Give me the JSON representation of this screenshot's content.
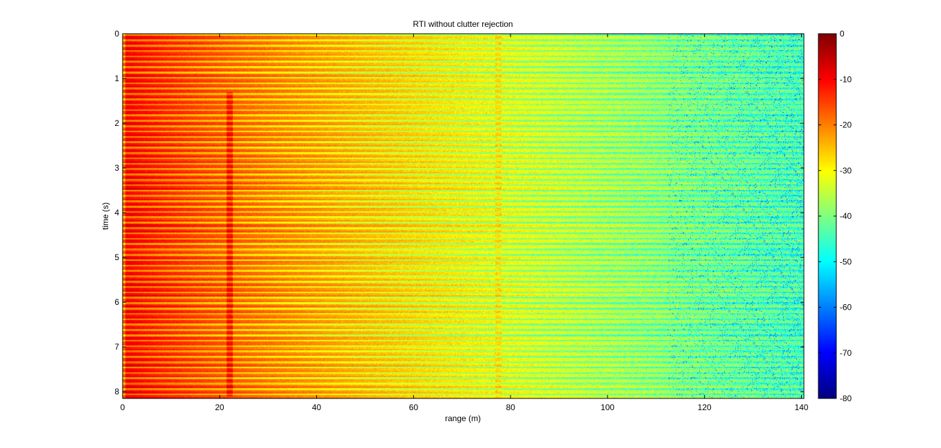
{
  "chart_data": {
    "type": "heatmap",
    "title": "RTI without clutter rejection",
    "xlabel": "range (m)",
    "ylabel": "time (s)",
    "xlim": [
      0,
      140.5
    ],
    "ylim": [
      0,
      8.15
    ],
    "y_reversed": true,
    "x_ticks": [
      0,
      20,
      40,
      60,
      80,
      100,
      120,
      140
    ],
    "x_tick_labels": [
      "0",
      "20",
      "40",
      "60",
      "80",
      "100",
      "120",
      "140"
    ],
    "y_ticks": [
      0,
      1,
      2,
      3,
      4,
      5,
      6,
      7,
      8
    ],
    "y_tick_labels": [
      "0",
      "1",
      "2",
      "3",
      "4",
      "5",
      "6",
      "7",
      "8"
    ],
    "colormap": "jet",
    "colorbar": {
      "clim": [
        -80,
        0
      ],
      "ticks": [
        0,
        -10,
        -20,
        -30,
        -40,
        -50,
        -60,
        -70,
        -80
      ],
      "tick_labels": [
        "0",
        "-10",
        "-20",
        "-30",
        "-40",
        "-50",
        "-60",
        "-70",
        "-80"
      ]
    },
    "description_model": {
      "near_range_level_db": -12,
      "far_range_level_db": -45,
      "strong_returns_range_m": [
        21.5,
        22.8
      ],
      "strong_returns_time_s": [
        1.3,
        8.1
      ],
      "weak_return_range_m": 77.5,
      "horizontal_banding": true
    }
  }
}
